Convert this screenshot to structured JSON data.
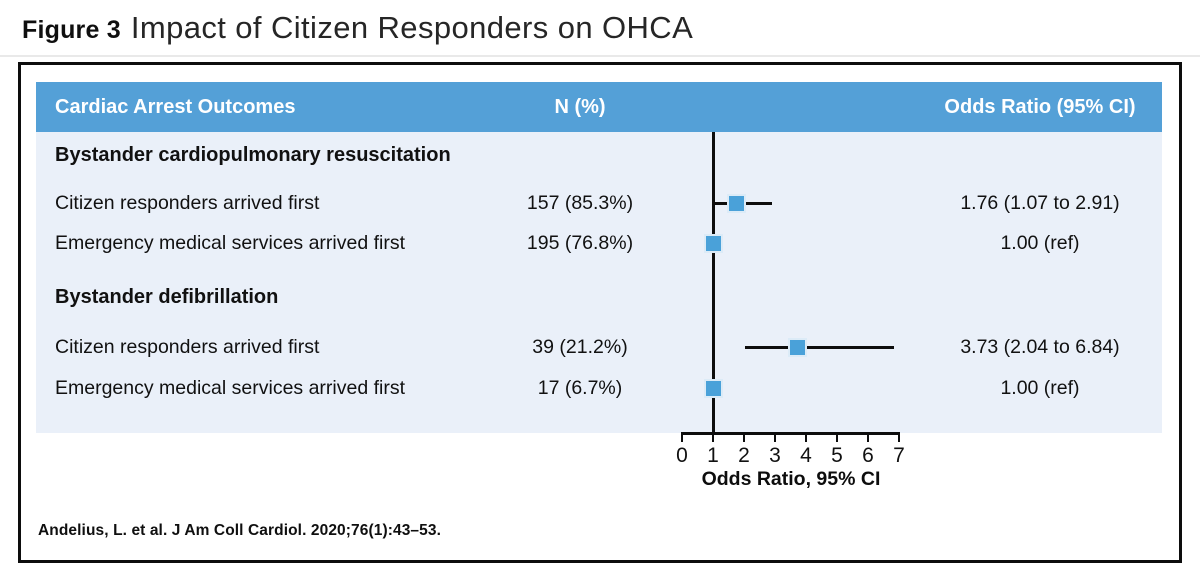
{
  "figure": {
    "label": "Figure 3",
    "title": "Impact of Citizen Responders on OHCA"
  },
  "table": {
    "headers": [
      "Cardiac Arrest Outcomes",
      "N (%)",
      "Odds Ratio (95% CI)"
    ],
    "sections": [
      {
        "title": "Bystander cardiopulmonary resuscitation",
        "rows": [
          {
            "label": "Citizen responders arrived first",
            "n": "157 (85.3%)",
            "or_text": "1.76 (1.07 to 2.91)"
          },
          {
            "label": "Emergency medical services arrived first",
            "n": "195 (76.8%)",
            "or_text": "1.00 (ref)"
          }
        ]
      },
      {
        "title": "Bystander defibrillation",
        "rows": [
          {
            "label": "Citizen responders arrived first",
            "n": "39 (21.2%)",
            "or_text": "3.73 (2.04 to 6.84)"
          },
          {
            "label": "Emergency medical services arrived first",
            "n": "17 (6.7%)",
            "or_text": "1.00 (ref)"
          }
        ]
      }
    ]
  },
  "chart_data": {
    "type": "forest",
    "xlabel": "Odds Ratio, 95% CI",
    "xlim": [
      0,
      7
    ],
    "ticks": [
      0,
      1,
      2,
      3,
      4,
      5,
      6,
      7
    ],
    "reference_line": 1,
    "points": [
      {
        "group": "Bystander cardiopulmonary resuscitation",
        "label": "Citizen responders arrived first",
        "or": 1.76,
        "ci": [
          1.07,
          2.91
        ]
      },
      {
        "group": "Bystander cardiopulmonary resuscitation",
        "label": "Emergency medical services arrived first",
        "or": 1.0,
        "ci": null
      },
      {
        "group": "Bystander defibrillation",
        "label": "Citizen responders arrived first",
        "or": 3.73,
        "ci": [
          2.04,
          6.84
        ]
      },
      {
        "group": "Bystander defibrillation",
        "label": "Emergency medical services arrived first",
        "or": 1.0,
        "ci": null
      }
    ]
  },
  "citation": "Andelius, L. et al. J Am Coll Cardiol. 2020;76(1):43–53.",
  "colors": {
    "header_bg": "#54a0d7",
    "body_bg": "#eaf0f9",
    "marker": "#4aa1d9",
    "line": "#0d0d0d"
  }
}
